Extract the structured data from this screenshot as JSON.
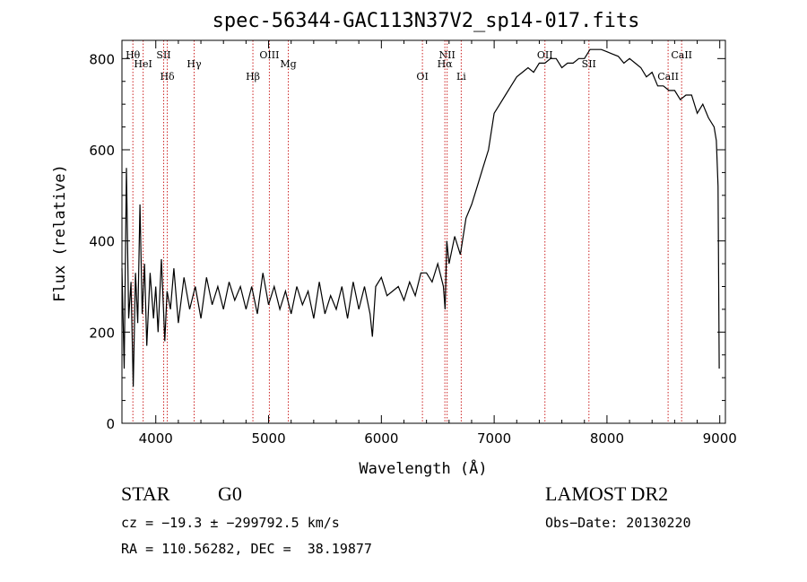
{
  "chart_data": {
    "type": "line",
    "title": "spec-56344-GAC113N37V2_sp14-017.fits",
    "xlabel": "Wavelength (Å)",
    "ylabel": "Flux (relative)",
    "xlim": [
      3700,
      9050
    ],
    "ylim": [
      0,
      840
    ],
    "xticks": [
      4000,
      5000,
      6000,
      7000,
      8000,
      9000
    ],
    "yticks": [
      0,
      200,
      400,
      600,
      800
    ],
    "series": [
      {
        "x": [
          3700,
          3720,
          3740,
          3760,
          3780,
          3800,
          3820,
          3840,
          3860,
          3880,
          3900,
          3920,
          3950,
          3980,
          4000,
          4020,
          4050,
          4080,
          4100,
          4130,
          4160,
          4200,
          4250,
          4300,
          4350,
          4400,
          4450,
          4500,
          4550,
          4600,
          4650,
          4700,
          4750,
          4800,
          4850,
          4900,
          4950,
          5000,
          5050,
          5100,
          5150,
          5200,
          5250,
          5300,
          5350,
          5400,
          5450,
          5500,
          5550,
          5600,
          5650,
          5700,
          5750,
          5800,
          5850,
          5900,
          5920,
          5950,
          6000,
          6050,
          6100,
          6150,
          6200,
          6250,
          6300,
          6350,
          6400,
          6450,
          6500,
          6550,
          6565,
          6580,
          6600,
          6650,
          6700,
          6750,
          6800,
          6850,
          6900,
          6950,
          7000,
          7050,
          7100,
          7150,
          7200,
          7250,
          7300,
          7350,
          7400,
          7450,
          7500,
          7550,
          7600,
          7650,
          7700,
          7750,
          7800,
          7850,
          7900,
          7950,
          8000,
          8050,
          8100,
          8150,
          8200,
          8250,
          8300,
          8350,
          8400,
          8450,
          8500,
          8550,
          8600,
          8650,
          8700,
          8750,
          8800,
          8850,
          8900,
          8950,
          8970,
          8985,
          8995
        ],
        "values": [
          340,
          120,
          560,
          230,
          310,
          80,
          330,
          220,
          480,
          240,
          350,
          170,
          330,
          230,
          300,
          200,
          360,
          180,
          290,
          250,
          340,
          220,
          320,
          250,
          300,
          230,
          320,
          260,
          300,
          250,
          310,
          270,
          300,
          250,
          300,
          240,
          330,
          260,
          300,
          250,
          290,
          240,
          300,
          260,
          290,
          230,
          310,
          240,
          280,
          250,
          300,
          230,
          310,
          250,
          300,
          240,
          190,
          300,
          320,
          280,
          290,
          300,
          270,
          310,
          280,
          330,
          330,
          310,
          350,
          300,
          250,
          400,
          350,
          410,
          370,
          450,
          480,
          520,
          560,
          600,
          680,
          700,
          720,
          740,
          760,
          770,
          780,
          770,
          790,
          790,
          800,
          800,
          780,
          790,
          790,
          800,
          800,
          820,
          820,
          820,
          815,
          810,
          805,
          790,
          800,
          790,
          780,
          760,
          770,
          740,
          740,
          730,
          730,
          710,
          720,
          720,
          680,
          700,
          670,
          650,
          620,
          520,
          120
        ]
      }
    ],
    "lines": [
      {
        "label": "Hθ",
        "x": 3797
      },
      {
        "label": "HeI",
        "x": 3888
      },
      {
        "label": "Hδ",
        "x": 4102
      },
      {
        "label": "SII",
        "x": 4070
      },
      {
        "label": "Hγ",
        "x": 4340
      },
      {
        "label": "Hβ",
        "x": 4861
      },
      {
        "label": "OIII",
        "x": 5007
      },
      {
        "label": "Mg",
        "x": 5175
      },
      {
        "label": "OI",
        "x": 6364
      },
      {
        "label": "NII",
        "x": 6583
      },
      {
        "label": "Hα",
        "x": 6563
      },
      {
        "label": "Li",
        "x": 6708
      },
      {
        "label": "OII",
        "x": 7450
      },
      {
        "label": "SII",
        "x": 7840
      },
      {
        "label": "CaII",
        "x": 8542
      },
      {
        "label": "CaII",
        "x": 8662
      }
    ]
  },
  "footer": {
    "object_class": "STAR",
    "subclass": "G0",
    "survey": "LAMOST DR2",
    "velocity": "cz = −19.3 ± −299792.5 km/s",
    "obs_date": "Obs−Date: 20130220",
    "coords": "RA = 110.56282, DEC =  38.19877"
  },
  "colors": {
    "line_marker": "#cc2222",
    "spectrum": "#000000"
  }
}
